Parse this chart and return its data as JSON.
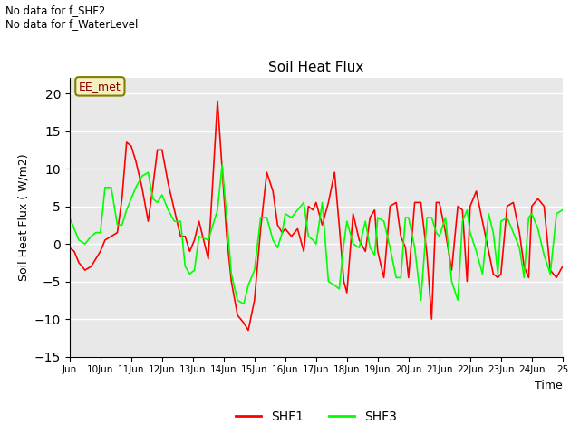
{
  "title": "Soil Heat Flux",
  "ylabel": "Soil Heat Flux ( W/m2)",
  "xlabel": "Time",
  "ylim": [
    -15,
    22
  ],
  "yticks": [
    -15,
    -10,
    -5,
    0,
    5,
    10,
    15,
    20
  ],
  "text_top_left": "No data for f_SHF2\nNo data for f_WaterLevel",
  "annotation_box": "EE_met",
  "bg_color": "#e8e8e8",
  "grid_color": "white",
  "shf1_color": "red",
  "shf3_color": "lime",
  "legend_shf1": "SHF1",
  "legend_shf3": "SHF3",
  "x_tick_labels": [
    "Jun",
    "10Jun",
    "11Jun",
    "12Jun",
    "13Jun",
    "14Jun",
    "15Jun",
    "16Jun",
    "17Jun",
    "18Jun",
    "19Jun",
    "20Jun",
    "21Jun",
    "22Jun",
    "23Jun",
    "24Jun",
    "25"
  ],
  "shf1_x": [
    9.0,
    9.15,
    9.3,
    9.5,
    9.7,
    9.85,
    10.0,
    10.15,
    10.35,
    10.55,
    10.7,
    10.85,
    11.0,
    11.15,
    11.35,
    11.55,
    11.7,
    11.85,
    12.0,
    12.2,
    12.4,
    12.6,
    12.75,
    12.9,
    13.05,
    13.2,
    13.5,
    13.8,
    13.95,
    14.1,
    14.25,
    14.45,
    14.65,
    14.8,
    15.0,
    15.2,
    15.4,
    15.6,
    15.75,
    15.9,
    16.0,
    16.2,
    16.4,
    16.6,
    16.75,
    16.9,
    17.0,
    17.2,
    17.4,
    17.6,
    17.75,
    17.9,
    18.0,
    18.2,
    18.4,
    18.6,
    18.75,
    18.9,
    19.0,
    19.2,
    19.4,
    19.6,
    19.75,
    19.9,
    20.0,
    20.2,
    20.4,
    20.6,
    20.75,
    20.9,
    21.0,
    21.2,
    21.4,
    21.6,
    21.75,
    21.9,
    22.0,
    22.2,
    22.4,
    22.6,
    22.75,
    22.9,
    23.0,
    23.2,
    23.4,
    23.6,
    23.75,
    23.9,
    24.0,
    24.2,
    24.4,
    24.6,
    24.8,
    25.0
  ],
  "shf1_y": [
    -0.5,
    -1.0,
    -2.5,
    -3.5,
    -3.0,
    -2.0,
    -1.0,
    0.5,
    1.0,
    1.5,
    6.0,
    13.5,
    13.0,
    11.0,
    7.5,
    3.0,
    7.5,
    12.5,
    12.5,
    8.0,
    4.5,
    1.0,
    1.0,
    -1.0,
    0.5,
    3.0,
    -2.0,
    19.0,
    10.0,
    1.0,
    -5.0,
    -9.5,
    -10.5,
    -11.5,
    -7.5,
    2.0,
    9.5,
    7.0,
    2.5,
    1.5,
    2.0,
    1.0,
    2.0,
    -1.0,
    5.0,
    4.5,
    5.5,
    2.5,
    5.5,
    9.5,
    2.5,
    -5.0,
    -6.5,
    4.0,
    0.5,
    -1.0,
    3.5,
    4.5,
    -1.0,
    -4.5,
    5.0,
    5.5,
    1.0,
    -0.5,
    -4.5,
    5.5,
    5.5,
    -1.5,
    -10.0,
    5.5,
    5.5,
    1.5,
    -3.5,
    5.0,
    4.5,
    -5.0,
    5.0,
    7.0,
    3.0,
    -1.0,
    -4.0,
    -4.5,
    -4.0,
    5.0,
    5.5,
    1.5,
    -3.0,
    -4.5,
    5.0,
    6.0,
    5.0,
    -3.5,
    -4.5,
    -3.0
  ],
  "shf3_x": [
    9.0,
    9.15,
    9.3,
    9.5,
    9.7,
    9.85,
    10.0,
    10.15,
    10.35,
    10.55,
    10.7,
    10.85,
    11.0,
    11.15,
    11.35,
    11.55,
    11.7,
    11.85,
    12.0,
    12.2,
    12.4,
    12.6,
    12.75,
    12.9,
    13.05,
    13.2,
    13.5,
    13.8,
    13.95,
    14.1,
    14.25,
    14.45,
    14.65,
    14.8,
    15.0,
    15.2,
    15.4,
    15.6,
    15.75,
    15.9,
    16.0,
    16.2,
    16.4,
    16.6,
    16.75,
    16.9,
    17.0,
    17.2,
    17.4,
    17.6,
    17.75,
    17.9,
    18.0,
    18.2,
    18.4,
    18.6,
    18.75,
    18.9,
    19.0,
    19.2,
    19.4,
    19.6,
    19.75,
    19.9,
    20.0,
    20.2,
    20.4,
    20.6,
    20.75,
    20.9,
    21.0,
    21.2,
    21.4,
    21.6,
    21.75,
    21.9,
    22.0,
    22.2,
    22.4,
    22.6,
    22.75,
    22.9,
    23.0,
    23.2,
    23.4,
    23.6,
    23.75,
    23.9,
    24.0,
    24.2,
    24.4,
    24.6,
    24.8,
    25.0
  ],
  "shf3_y": [
    3.5,
    2.0,
    0.5,
    0.0,
    1.0,
    1.5,
    1.5,
    7.5,
    7.5,
    2.5,
    2.5,
    4.5,
    6.0,
    7.5,
    9.0,
    9.5,
    6.0,
    5.5,
    6.5,
    4.5,
    3.0,
    3.0,
    -3.0,
    -4.0,
    -3.5,
    1.0,
    0.5,
    4.5,
    10.5,
    3.5,
    -4.0,
    -7.5,
    -8.0,
    -5.5,
    -3.5,
    3.5,
    3.5,
    0.5,
    -0.5,
    1.5,
    4.0,
    3.5,
    4.5,
    5.5,
    1.0,
    0.5,
    0.0,
    5.5,
    -5.0,
    -5.5,
    -6.0,
    0.0,
    3.0,
    0.0,
    -0.5,
    3.0,
    -0.5,
    -1.5,
    3.5,
    3.0,
    -0.5,
    -4.5,
    -4.5,
    3.5,
    3.5,
    -0.5,
    -7.5,
    3.5,
    3.5,
    1.5,
    1.0,
    3.5,
    -5.0,
    -7.5,
    3.0,
    4.5,
    1.5,
    -1.0,
    -4.0,
    4.0,
    1.5,
    -4.0,
    3.0,
    3.5,
    1.5,
    -0.5,
    -4.5,
    3.5,
    4.0,
    2.0,
    -1.5,
    -4.0,
    4.0,
    4.5
  ]
}
